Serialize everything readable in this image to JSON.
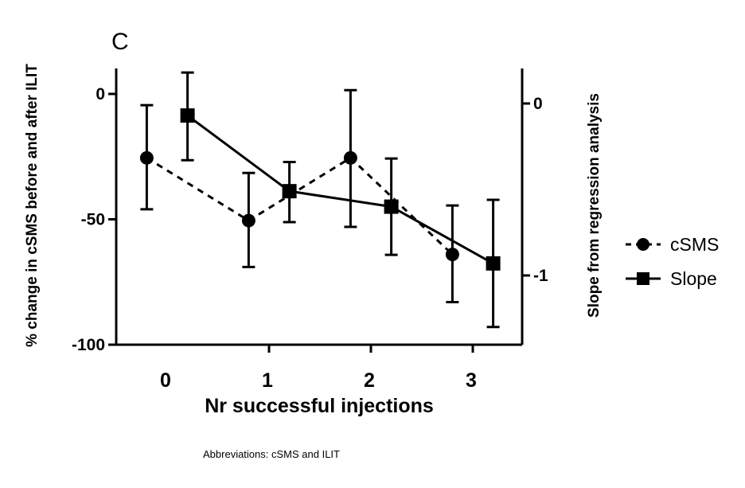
{
  "panel_letter": "C",
  "footnote": "Abbreviations: cSMS and ILIT",
  "chart_data": {
    "type": "line",
    "title": "",
    "xlabel": "Nr successful injections",
    "ylabel_left": "% change in cSMS before and after ILIT",
    "ylabel_right": "Slope from regression analysis",
    "categories": [
      "0",
      "1",
      "2",
      "3"
    ],
    "x_ticks": [
      0,
      1,
      2,
      3
    ],
    "ylim_left": [
      -100,
      10
    ],
    "yticks_left": [
      0,
      -50,
      -100
    ],
    "ytick_labels_left": [
      "0",
      "-50",
      "-100"
    ],
    "ylim_right": [
      -1.3,
      0.2
    ],
    "yticks_right": [
      0,
      -1
    ],
    "ytick_labels_right": [
      "0",
      "-1"
    ],
    "grid": false,
    "legend_position": "right",
    "series": [
      {
        "name": "cSMS",
        "axis": "left",
        "marker": "circle",
        "line_style": "dashed",
        "x_offset": -0.2,
        "values": [
          -25.5,
          -50.5,
          -25.5,
          -64
        ],
        "err_low": [
          -46,
          -69,
          -53,
          -83
        ],
        "err_high": [
          -4.5,
          -31.5,
          1.5,
          -44.5
        ]
      },
      {
        "name": "Slope",
        "axis": "right",
        "marker": "square",
        "line_style": "solid",
        "x_offset": 0.2,
        "values": [
          -0.07,
          -0.51,
          -0.6,
          -0.93
        ],
        "err_low": [
          -0.33,
          -0.69,
          -0.88,
          -1.3
        ],
        "err_high": [
          0.18,
          -0.34,
          -0.32,
          -0.56
        ]
      }
    ]
  }
}
